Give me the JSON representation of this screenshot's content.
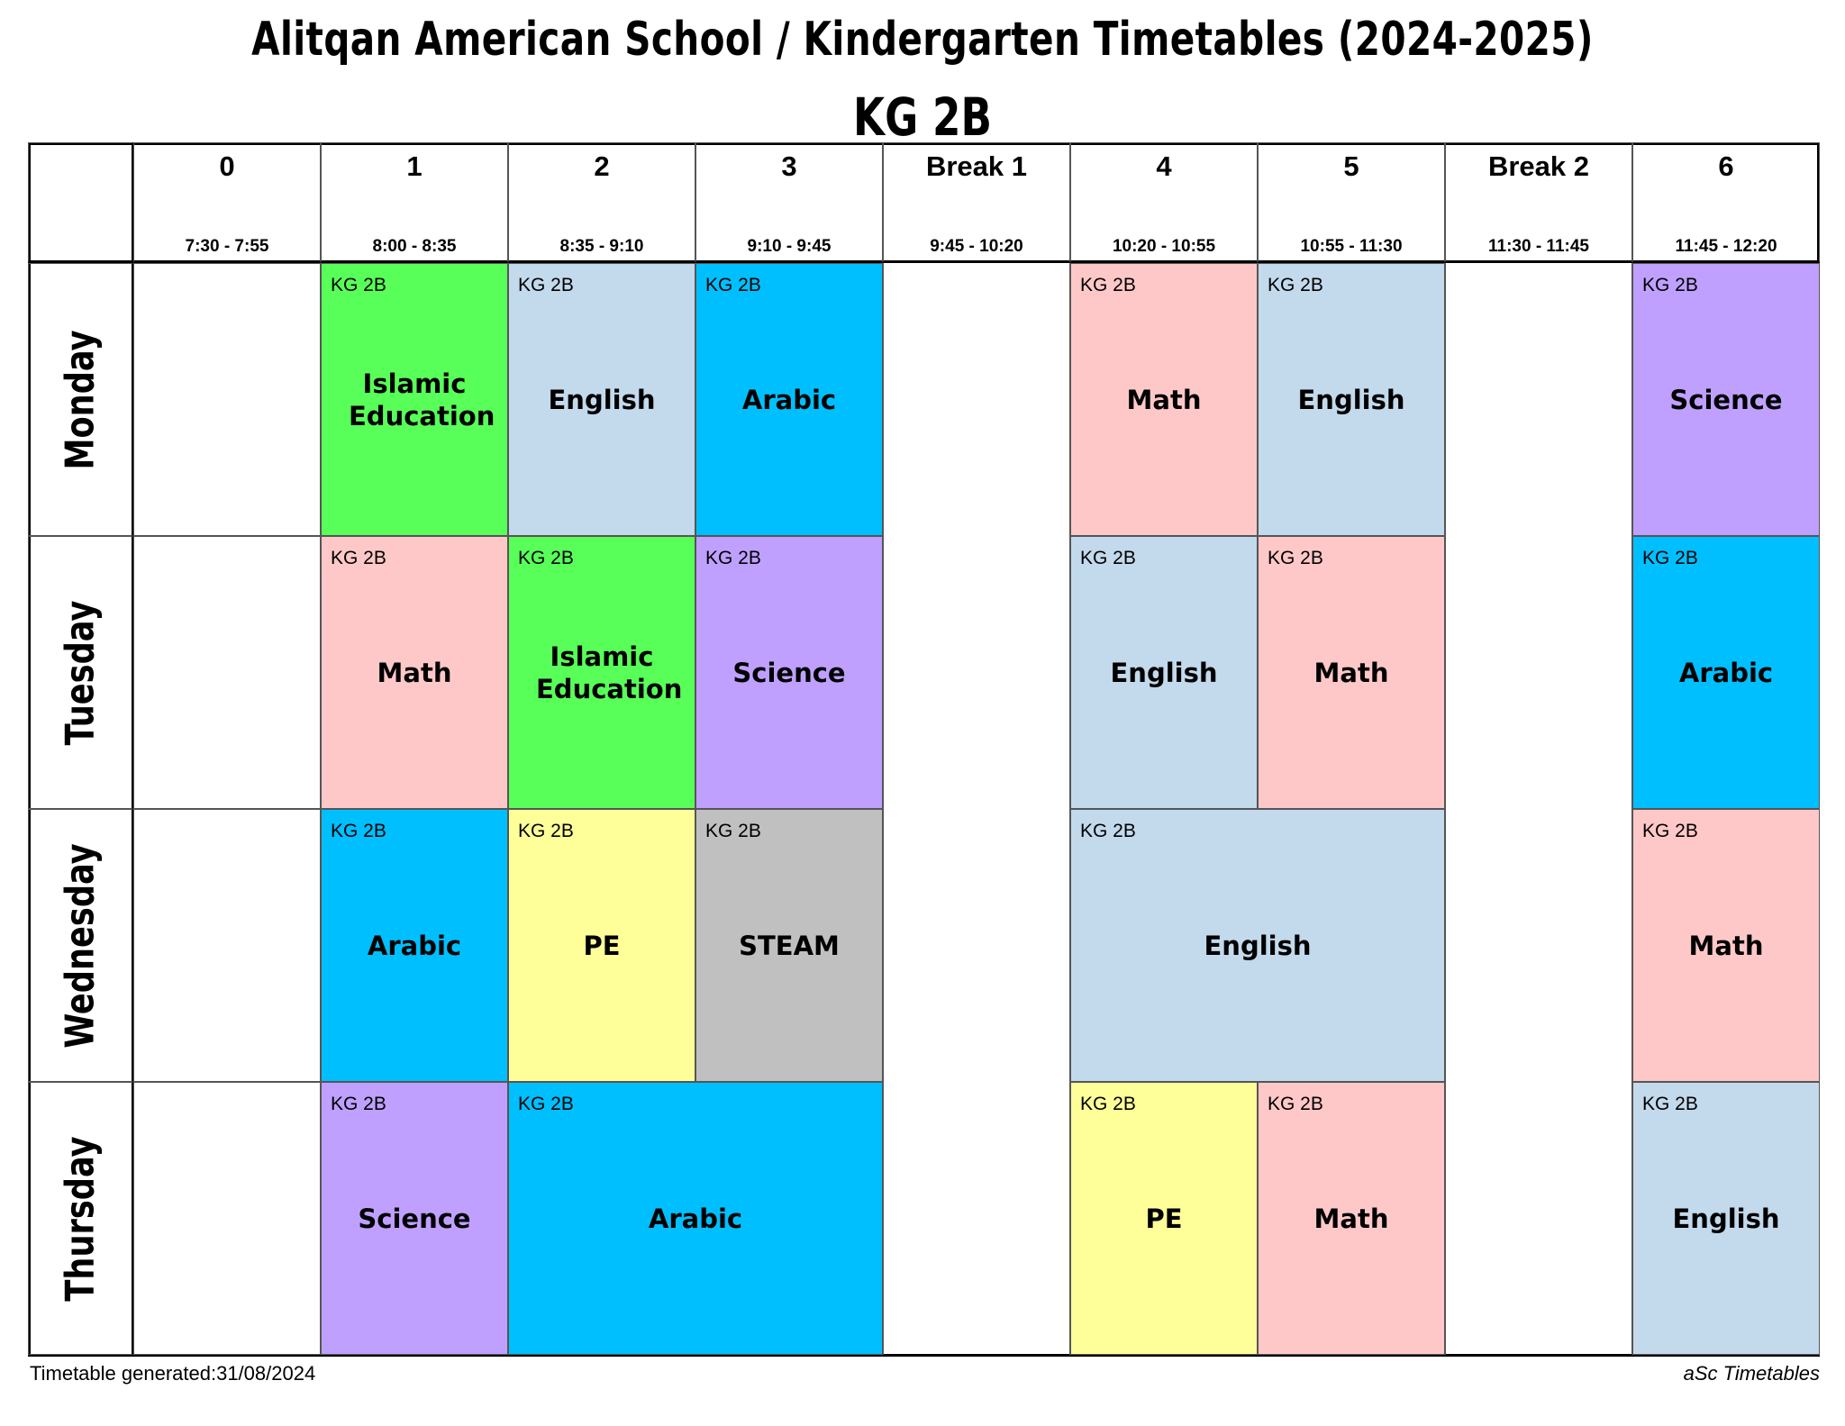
{
  "header": {
    "title": "Alitqan American School / Kindergarten Timetables (2024-2025)",
    "class_name": "KG 2B"
  },
  "periods": [
    {
      "label": "0",
      "time": "7:30 - 7:55"
    },
    {
      "label": "1",
      "time": "8:00 - 8:35"
    },
    {
      "label": "2",
      "time": "8:35 - 9:10"
    },
    {
      "label": "3",
      "time": "9:10 - 9:45"
    },
    {
      "label": "Break 1",
      "time": "9:45 - 10:20"
    },
    {
      "label": "4",
      "time": "10:20 - 10:55"
    },
    {
      "label": "5",
      "time": "10:55 - 11:30"
    },
    {
      "label": "Break 2",
      "time": "11:30 - 11:45"
    },
    {
      "label": "6",
      "time": "11:45 - 12:20"
    }
  ],
  "days": [
    "Monday",
    "Tuesday",
    "Wednesday",
    "Thursday"
  ],
  "subject_colors": {
    "Islamic Education": "#58FF58",
    "English": "#C3D9EC",
    "Arabic": "#00BFFF",
    "Math": "#FFC8C8",
    "Science": "#BFA0FF",
    "PE": "#FFFF99",
    "STEAM": "#C0C0C0"
  },
  "lessons": [
    {
      "day": 0,
      "period": 1,
      "span": 1,
      "class": "KG 2B",
      "subject": "Islamic Education"
    },
    {
      "day": 0,
      "period": 2,
      "span": 1,
      "class": "KG 2B",
      "subject": "English"
    },
    {
      "day": 0,
      "period": 3,
      "span": 1,
      "class": "KG 2B",
      "subject": "Arabic"
    },
    {
      "day": 0,
      "period": 5,
      "span": 1,
      "class": "KG 2B",
      "subject": "Math"
    },
    {
      "day": 0,
      "period": 6,
      "span": 1,
      "class": "KG 2B",
      "subject": "English"
    },
    {
      "day": 0,
      "period": 8,
      "span": 1,
      "class": "KG 2B",
      "subject": "Science"
    },
    {
      "day": 1,
      "period": 1,
      "span": 1,
      "class": "KG 2B",
      "subject": "Math"
    },
    {
      "day": 1,
      "period": 2,
      "span": 1,
      "class": "KG 2B",
      "subject": "Islamic Education"
    },
    {
      "day": 1,
      "period": 3,
      "span": 1,
      "class": "KG 2B",
      "subject": "Science"
    },
    {
      "day": 1,
      "period": 5,
      "span": 1,
      "class": "KG 2B",
      "subject": "English"
    },
    {
      "day": 1,
      "period": 6,
      "span": 1,
      "class": "KG 2B",
      "subject": "Math"
    },
    {
      "day": 1,
      "period": 8,
      "span": 1,
      "class": "KG 2B",
      "subject": "Arabic"
    },
    {
      "day": 2,
      "period": 1,
      "span": 1,
      "class": "KG 2B",
      "subject": "Arabic"
    },
    {
      "day": 2,
      "period": 2,
      "span": 1,
      "class": "KG 2B",
      "subject": "PE"
    },
    {
      "day": 2,
      "period": 3,
      "span": 1,
      "class": "KG 2B",
      "subject": "STEAM"
    },
    {
      "day": 2,
      "period": 5,
      "span": 2,
      "class": "KG 2B",
      "subject": "English"
    },
    {
      "day": 2,
      "period": 8,
      "span": 1,
      "class": "KG 2B",
      "subject": "Math"
    },
    {
      "day": 3,
      "period": 1,
      "span": 1,
      "class": "KG 2B",
      "subject": "Science"
    },
    {
      "day": 3,
      "period": 2,
      "span": 2,
      "class": "KG 2B",
      "subject": "Arabic"
    },
    {
      "day": 3,
      "period": 5,
      "span": 1,
      "class": "KG 2B",
      "subject": "PE"
    },
    {
      "day": 3,
      "period": 6,
      "span": 1,
      "class": "KG 2B",
      "subject": "Math"
    },
    {
      "day": 3,
      "period": 8,
      "span": 1,
      "class": "KG 2B",
      "subject": "English"
    }
  ],
  "footer": {
    "generated": "Timetable generated:31/08/2024",
    "credit": "aSc Timetables"
  }
}
